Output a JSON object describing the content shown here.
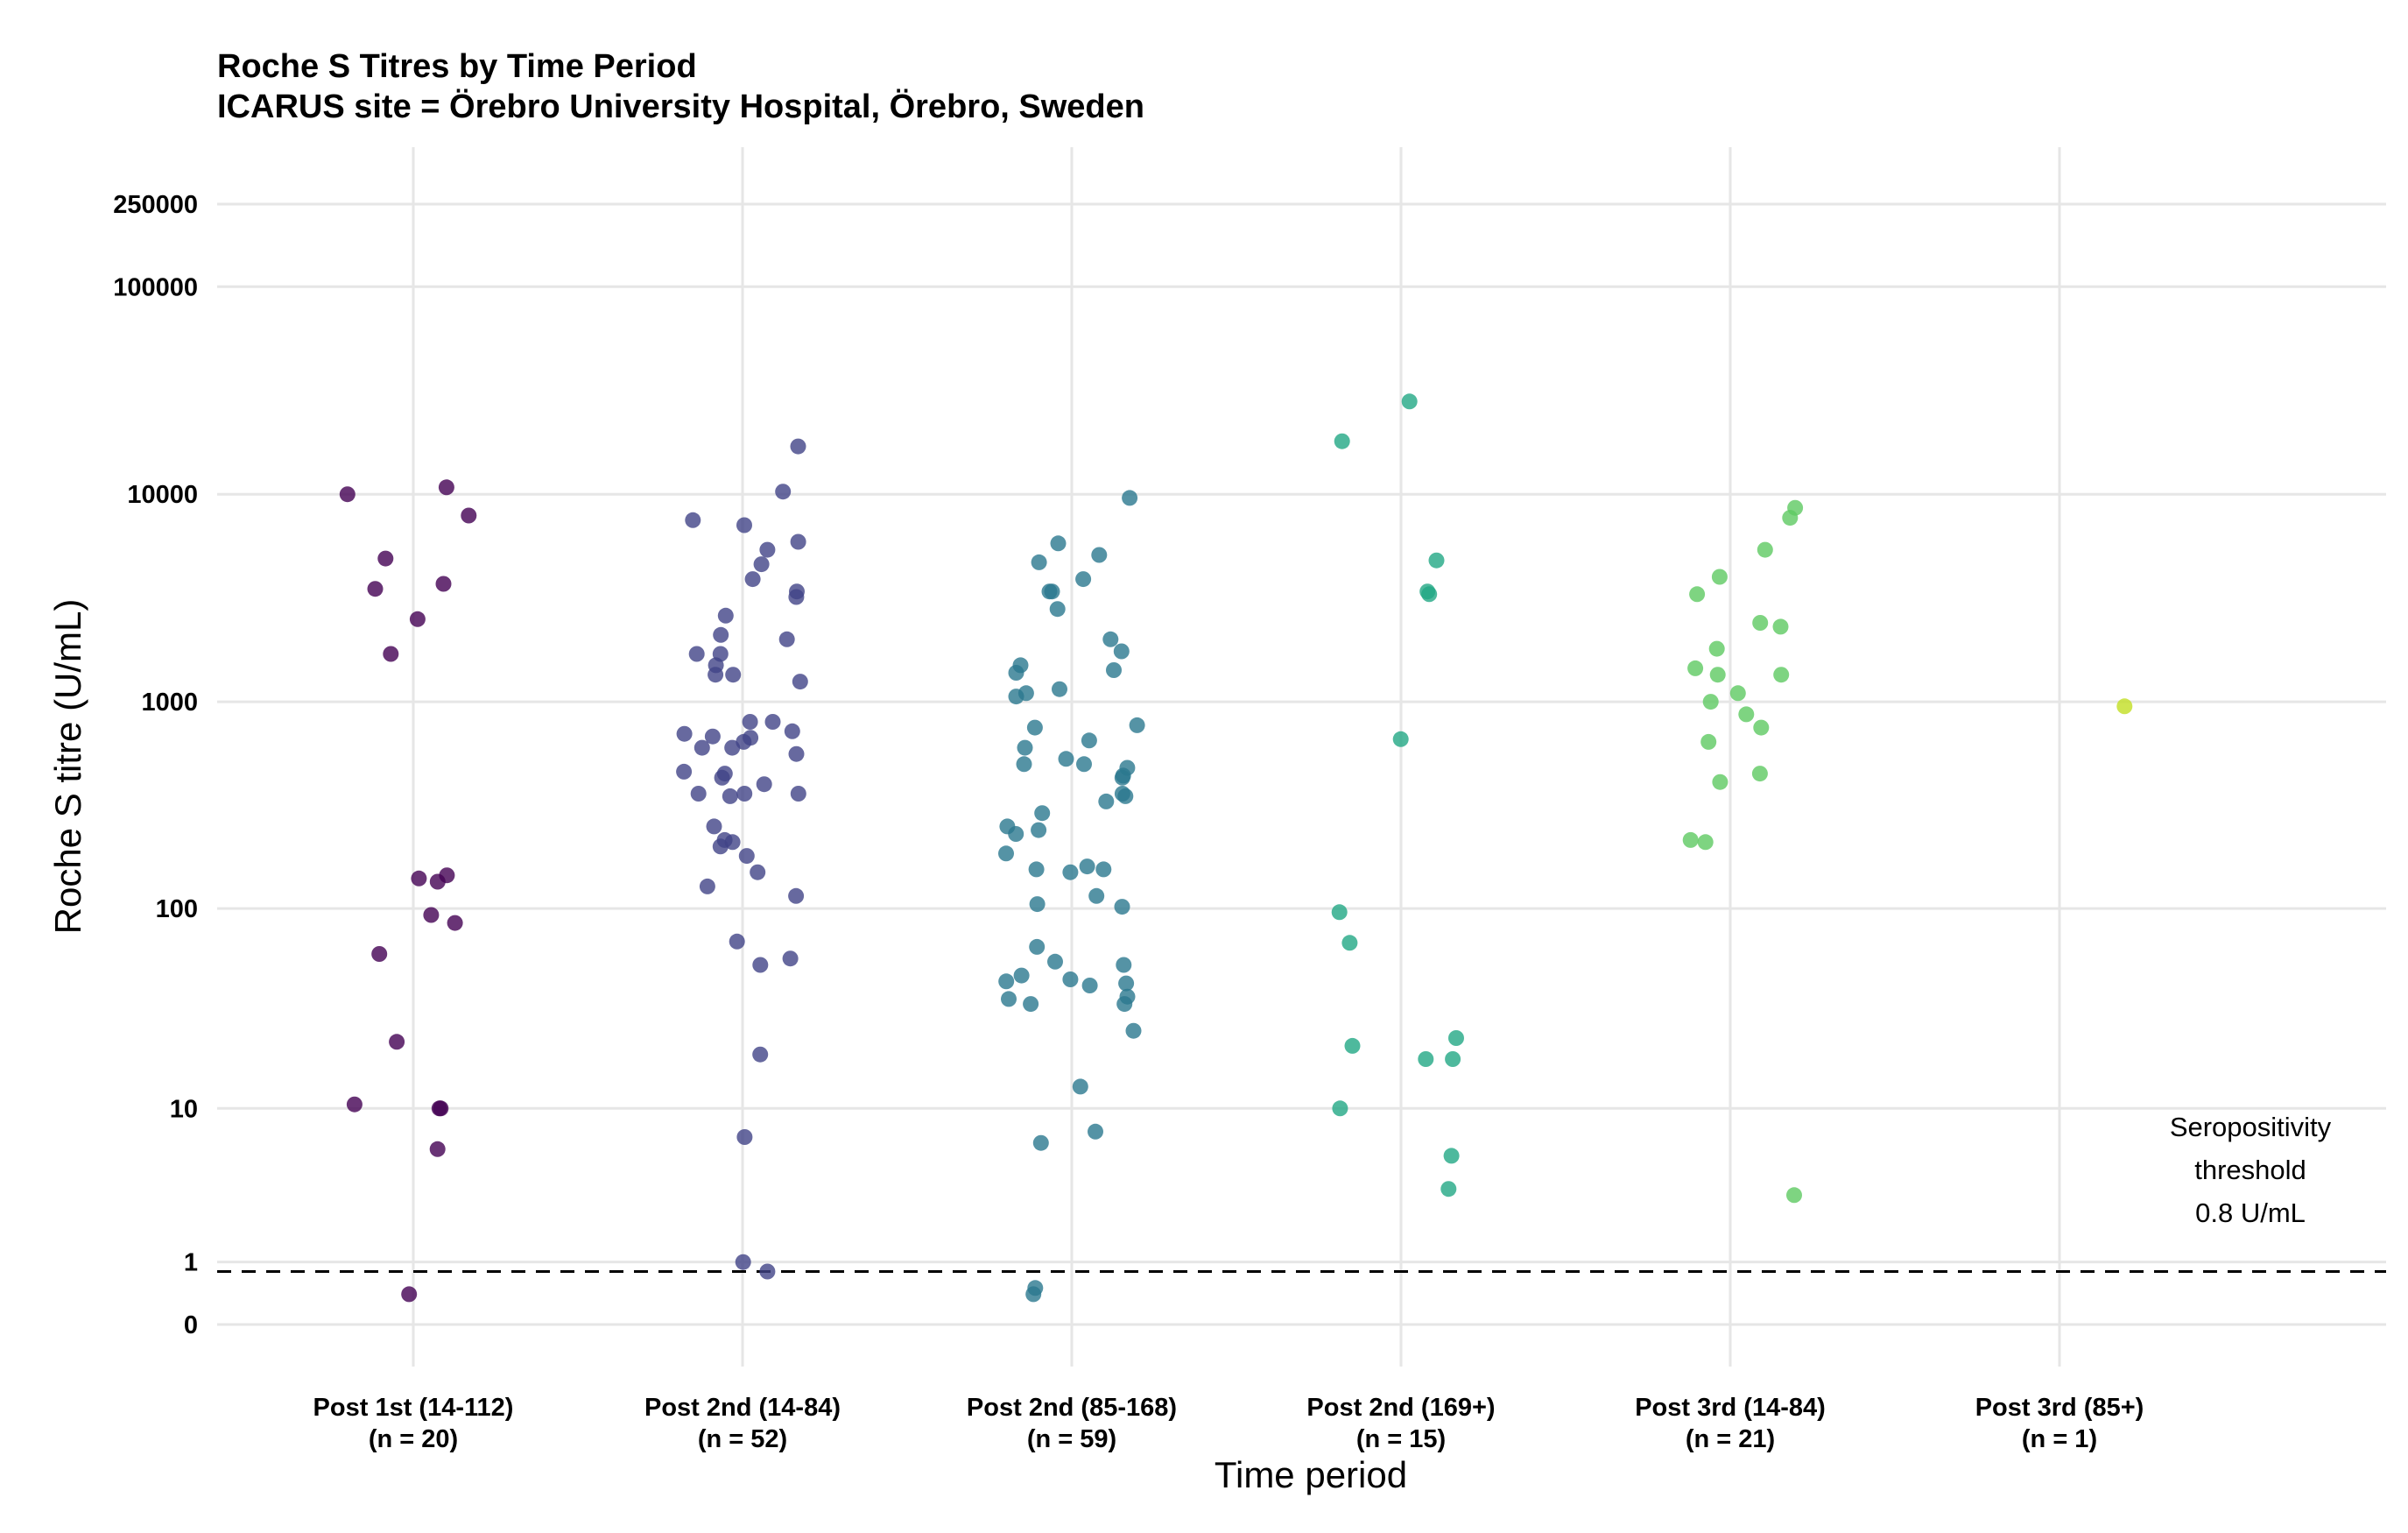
{
  "chart_data": {
    "type": "scatter",
    "title": "Roche S Titres by Time Period",
    "subtitle": "ICARUS site = Örebro University Hospital, Örebro, Sweden",
    "xlabel": "Time period",
    "ylabel": "Roche S titre (U/mL)",
    "y_scale": "log10(x+1)",
    "ylim": [
      0,
      250000
    ],
    "grid": true,
    "yticks": [
      0,
      1,
      10,
      100,
      1000,
      10000,
      100000,
      250000
    ],
    "ytick_labels": [
      "0",
      "1",
      "10",
      "100",
      "1000",
      "10000",
      "100000",
      "250000"
    ],
    "categories": [
      {
        "label": "Post 1st (14-112)",
        "n_label": "(n = 20)",
        "color": "#440154"
      },
      {
        "label": "Post 2nd (14-84)",
        "n_label": "(n = 52)",
        "color": "#414487"
      },
      {
        "label": "Post 2nd (85-168)",
        "n_label": "(n = 59)",
        "color": "#2A788E"
      },
      {
        "label": "Post 2nd (169+)",
        "n_label": "(n = 15)",
        "color": "#22A884"
      },
      {
        "label": "Post 3rd (14-84)",
        "n_label": "(n = 21)",
        "color": "#5EC962"
      },
      {
        "label": "Post 3rd (85+)",
        "n_label": "(n = 1)",
        "color": "#C2DF23"
      }
    ],
    "series": [
      {
        "category": "Post 1st (14-112)",
        "values": [
          10000,
          7900,
          4900,
          3500,
          3700,
          2500,
          1700,
          10800,
          145,
          140,
          135,
          93,
          85,
          60,
          22,
          10,
          10,
          10.5,
          6,
          0.4
        ]
      },
      {
        "category": "Post 2nd (14-84)",
        "values": [
          17000,
          10300,
          7500,
          7100,
          5900,
          5400,
          4600,
          3900,
          3400,
          3200,
          2600,
          2100,
          2000,
          1700,
          1700,
          1500,
          1350,
          1350,
          1250,
          800,
          800,
          720,
          700,
          680,
          670,
          640,
          600,
          600,
          560,
          460,
          450,
          430,
          400,
          360,
          360,
          360,
          350,
          250,
          215,
          210,
          200,
          180,
          150,
          128,
          115,
          69,
          57,
          53,
          19,
          7,
          1,
          0.8
        ]
      },
      {
        "category": "Post 2nd (85-168)",
        "values": [
          9600,
          5800,
          5100,
          4700,
          3900,
          3400,
          3400,
          2800,
          2000,
          1750,
          1500,
          1420,
          1380,
          1150,
          1100,
          1060,
          770,
          750,
          650,
          600,
          530,
          500,
          500,
          480,
          430,
          440,
          360,
          350,
          330,
          290,
          250,
          240,
          230,
          185,
          160,
          155,
          155,
          150,
          115,
          105,
          102,
          65,
          55,
          53,
          47,
          45,
          44,
          43,
          42,
          37,
          36,
          34,
          34,
          25,
          13,
          7.5,
          6.5,
          0.5,
          0.4
        ]
      },
      {
        "category": "Post 2nd (169+)",
        "values": [
          28000,
          18000,
          4800,
          3400,
          3300,
          660,
          96,
          68,
          23,
          21,
          18,
          18,
          10,
          5.5,
          3.5
        ]
      },
      {
        "category": "Post 3rd (14-84)",
        "values": [
          8600,
          7700,
          5400,
          4000,
          3300,
          2400,
          2300,
          1800,
          1450,
          1350,
          1350,
          1100,
          1000,
          870,
          750,
          640,
          450,
          410,
          215,
          210,
          3.2
        ]
      },
      {
        "category": "Post 3rd (85+)",
        "values": [
          950
        ]
      }
    ],
    "threshold": {
      "value": 0.8,
      "style": "dashed"
    },
    "annotation": [
      "Seropositivity",
      "threshold",
      "0.8 U/mL"
    ]
  }
}
